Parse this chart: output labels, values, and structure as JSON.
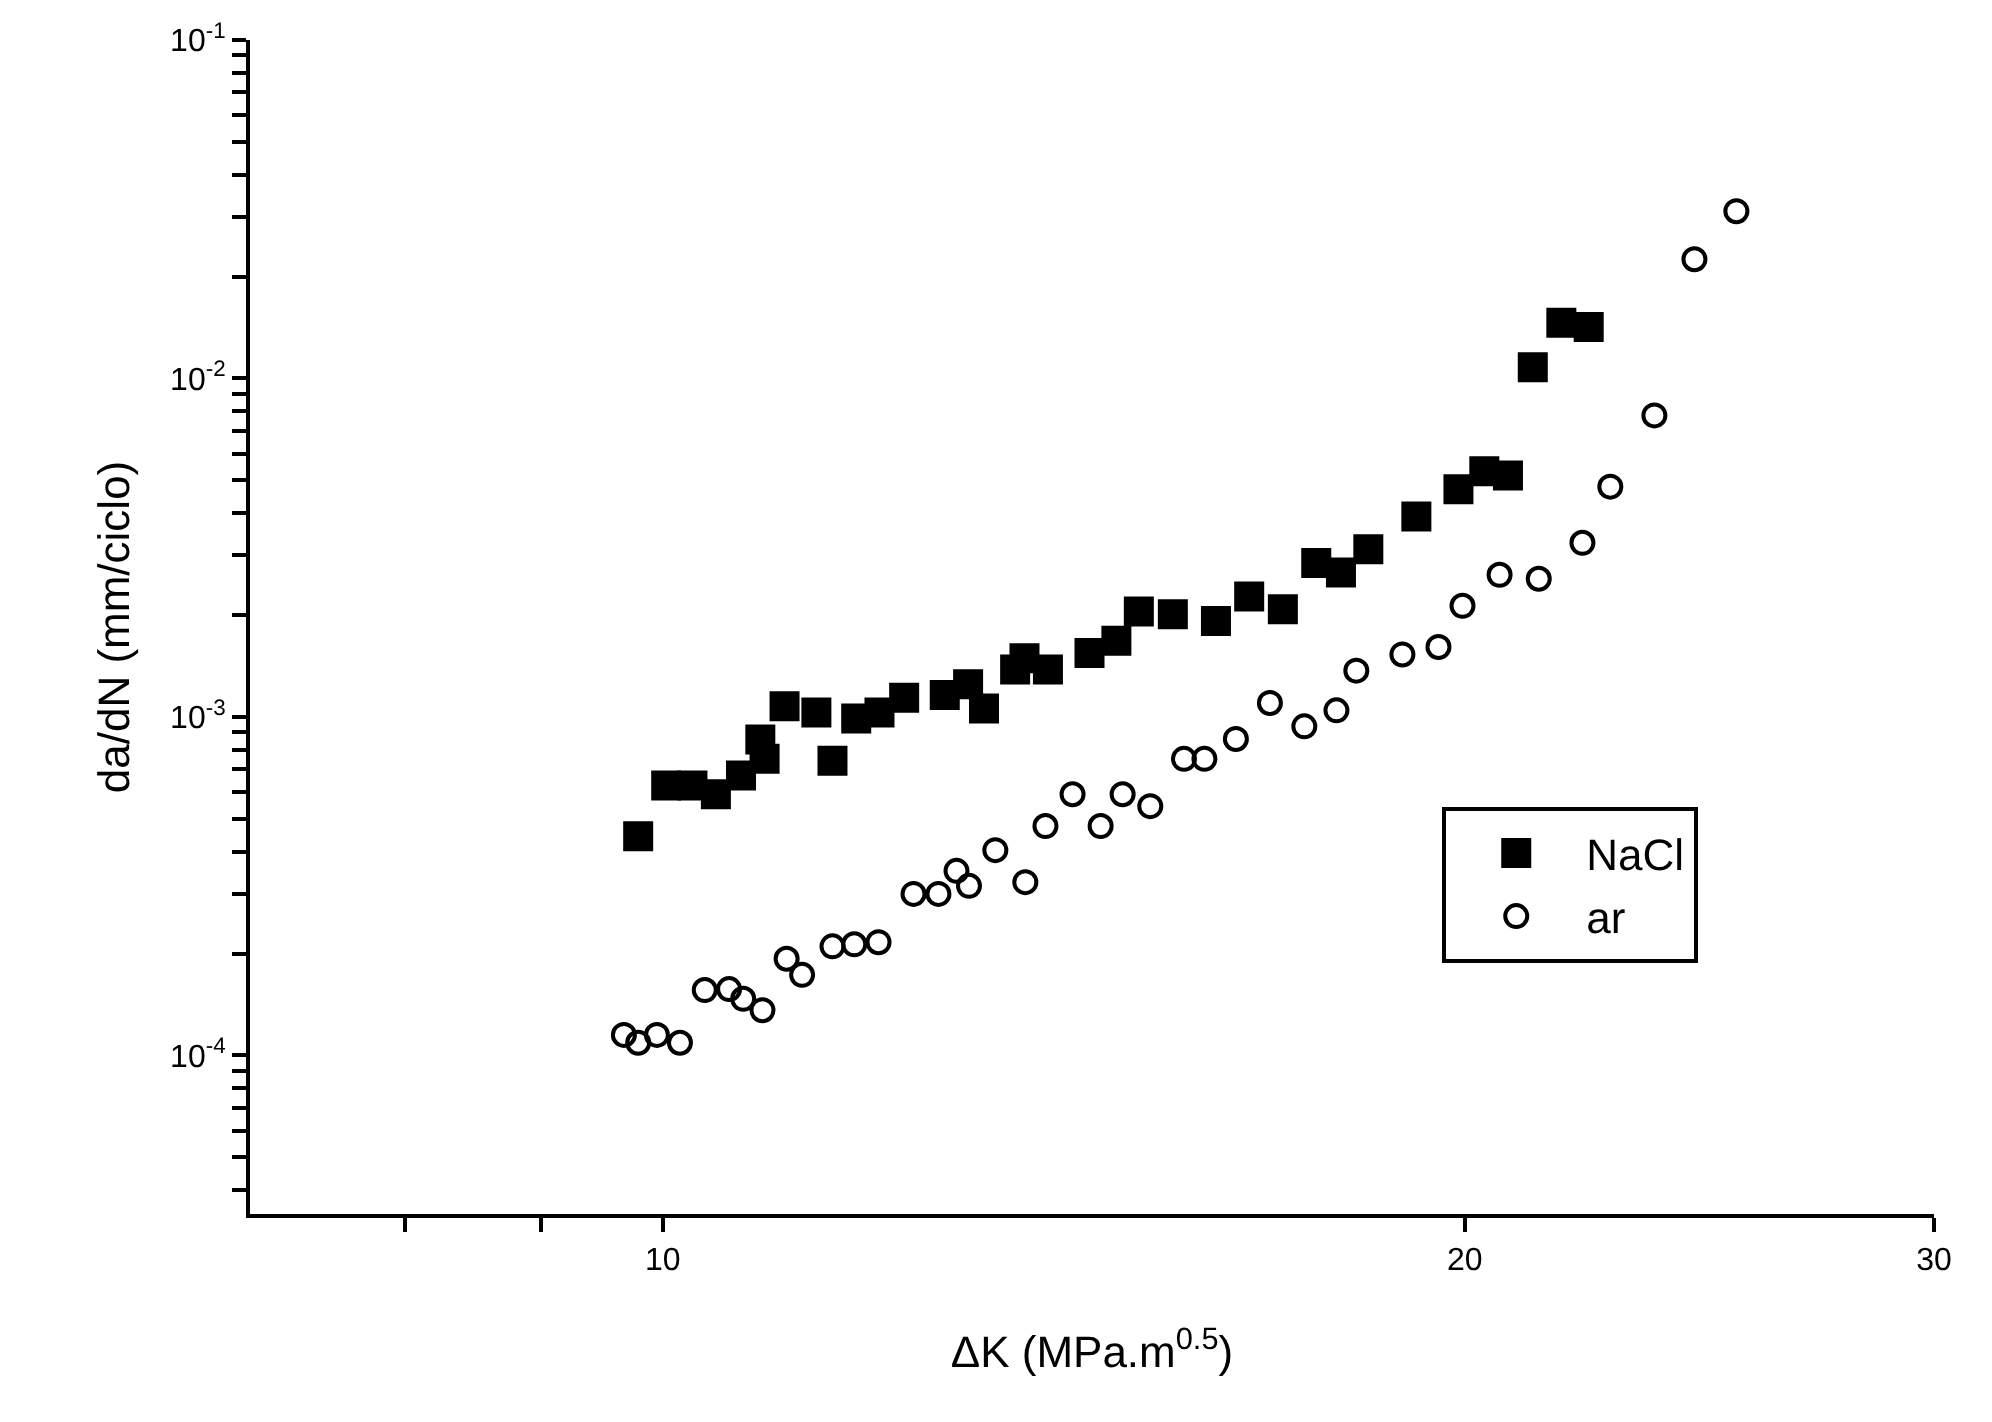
{
  "chart_data": {
    "type": "scatter",
    "xlabel": "ΔK (MPa.m$^{0.5}$)",
    "ylabel": "da/dN (mm/ciclo)",
    "log": "xy",
    "grid": false,
    "legend": "right",
    "xlim": [
      7,
      30
    ],
    "xticks": [
      {
        "value": 8,
        "label": null
      },
      {
        "value": 9,
        "label": null
      },
      10,
      20,
      30
    ],
    "ylim": [
      3.4e-05,
      0.1
    ],
    "yticks": [
      {
        "value": 4e-05,
        "label": null
      },
      {
        "value": 5e-05,
        "label": null
      },
      {
        "value": 6e-05,
        "label": null
      },
      {
        "value": 7e-05,
        "label": null
      },
      {
        "value": 8e-05,
        "label": null
      },
      {
        "value": 9e-05,
        "label": null
      },
      {
        "value": 0.0001,
        "label": "10$^{-4}$"
      },
      {
        "value": 0.0002,
        "label": null
      },
      {
        "value": 0.0003,
        "label": null
      },
      {
        "value": 0.0004,
        "label": null
      },
      {
        "value": 0.0005,
        "label": null
      },
      {
        "value": 0.0006,
        "label": null
      },
      {
        "value": 0.0007,
        "label": null
      },
      {
        "value": 0.0008,
        "label": null
      },
      {
        "value": 0.0009,
        "label": null
      },
      {
        "value": 0.001,
        "label": "10$^{-3}$"
      },
      {
        "value": 0.002,
        "label": null
      },
      {
        "value": 0.003,
        "label": null
      },
      {
        "value": 0.004,
        "label": null
      },
      {
        "value": 0.005,
        "label": null
      },
      {
        "value": 0.006,
        "label": null
      },
      {
        "value": 0.007,
        "label": null
      },
      {
        "value": 0.008,
        "label": null
      },
      {
        "value": 0.009,
        "label": null
      },
      {
        "value": 0.01,
        "label": "10$^{-2}$"
      },
      {
        "value": 0.02,
        "label": null
      },
      {
        "value": 0.03,
        "label": null
      },
      {
        "value": 0.04,
        "label": null
      },
      {
        "value": 0.05,
        "label": null
      },
      {
        "value": 0.06,
        "label": null
      },
      {
        "value": 0.07,
        "label": null
      },
      {
        "value": 0.08,
        "label": null
      },
      {
        "value": 0.09,
        "label": null
      },
      {
        "value": 0.1,
        "label": "10$^{-1}$"
      }
    ],
    "series": [
      {
        "name": "NaCl",
        "color": "#000000",
        "marker": "square",
        "x": [
          9.79,
          10.03,
          10.26,
          10.47,
          10.7,
          10.88,
          10.92,
          11.11,
          11.42,
          11.58,
          11.82,
          12.06,
          12.32,
          12.76,
          13.02,
          13.2,
          13.56,
          13.67,
          13.95,
          14.46,
          14.8,
          15.09,
          15.54,
          16.13,
          16.6,
          17.09,
          17.59,
          17.97,
          18.4,
          19.18,
          19.89,
          20.34,
          20.76,
          21.21,
          21.74,
          22.26
        ],
        "values": [
          0.000444,
          0.000627,
          0.000627,
          0.000591,
          0.000672,
          0.000858,
          0.000752,
          0.001075,
          0.00103,
          0.000742,
          0.00099,
          0.00103,
          0.00114,
          0.00116,
          0.00125,
          0.00106,
          0.00138,
          0.00149,
          0.00138,
          0.001545,
          0.00168,
          0.00205,
          0.00201,
          0.00192,
          0.00227,
          0.00208,
          0.00285,
          0.00267,
          0.00313,
          0.00391,
          0.00471,
          0.00532,
          0.00517,
          0.0108,
          0.0146,
          0.0142
        ]
      },
      {
        "name": "ar",
        "color": "#000000",
        "marker": "circle",
        "x": [
          9.67,
          9.79,
          9.95,
          10.15,
          10.37,
          10.59,
          10.72,
          10.9,
          11.13,
          11.28,
          11.58,
          11.8,
          12.05,
          12.42,
          12.69,
          12.89,
          13.03,
          13.33,
          13.68,
          13.92,
          14.25,
          14.6,
          14.88,
          15.24,
          15.69,
          15.97,
          16.41,
          16.9,
          17.41,
          17.9,
          18.21,
          18.95,
          19.55,
          19.96,
          20.61,
          21.32,
          22.14,
          22.68,
          23.56,
          24.39,
          25.29
        ],
        "values": [
          0.000115,
          0.000109,
          0.000115,
          0.000109,
          0.000156,
          0.000157,
          0.000147,
          0.000136,
          0.000193,
          0.000173,
          0.00021,
          0.000213,
          0.000216,
          0.0003,
          0.0003,
          0.000351,
          0.000317,
          0.000404,
          0.000325,
          0.000476,
          0.000591,
          0.000476,
          0.000591,
          0.000545,
          0.000752,
          0.000752,
          0.000861,
          0.0011,
          0.000938,
          0.001046,
          0.00137,
          0.00153,
          0.00161,
          0.00213,
          0.00263,
          0.00256,
          0.00327,
          0.00479,
          0.00778,
          0.0225,
          0.0312
        ]
      }
    ]
  }
}
